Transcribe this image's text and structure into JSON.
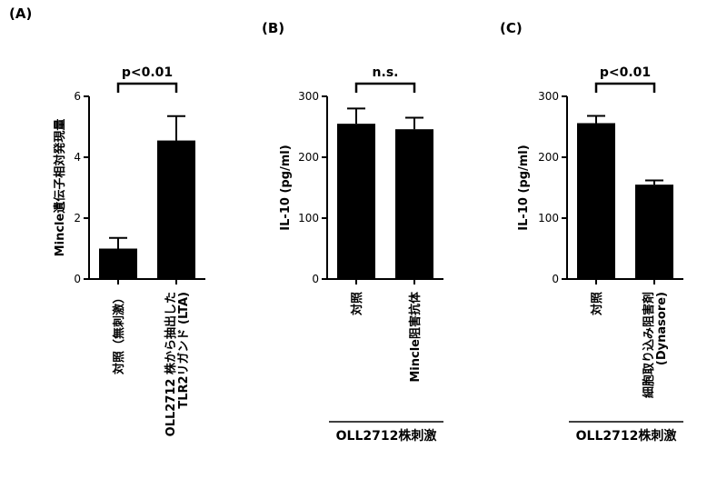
{
  "colors": {
    "bar": "#000000",
    "axis": "#000000",
    "background": "#ffffff"
  },
  "chart_data": [
    {
      "panel_label": "(A)",
      "type": "bar",
      "ylabel": "Mincle遺伝子相対発現量",
      "ylim": [
        0,
        6
      ],
      "yticks": [
        0,
        2,
        4,
        6
      ],
      "categories": [
        {
          "lines": [
            "対照（無刺激）"
          ]
        },
        {
          "lines": [
            "OLL2712 株から抽出した",
            "TLR2リガンド (LTA)"
          ]
        }
      ],
      "values": [
        1.0,
        4.55
      ],
      "errors": [
        0.35,
        0.8
      ],
      "significance": {
        "text": "p<0.01",
        "pair": [
          0,
          1
        ]
      },
      "group_label": ""
    },
    {
      "panel_label": "(B)",
      "type": "bar",
      "ylabel": "IL-10 (pg/ml)",
      "ylim": [
        0,
        300
      ],
      "yticks": [
        0,
        100,
        200,
        300
      ],
      "categories": [
        {
          "lines": [
            "対照"
          ]
        },
        {
          "lines": [
            "Mincle阻害抗体"
          ]
        }
      ],
      "values": [
        255,
        246
      ],
      "errors": [
        25,
        19
      ],
      "significance": {
        "text": "n.s.",
        "pair": [
          0,
          1
        ]
      },
      "group_label": "OLL2712株刺激"
    },
    {
      "panel_label": "(C)",
      "type": "bar",
      "ylabel": "IL-10 (pg/ml)",
      "ylim": [
        0,
        300
      ],
      "yticks": [
        0,
        100,
        200,
        300
      ],
      "categories": [
        {
          "lines": [
            "対照"
          ]
        },
        {
          "lines": [
            "細胞取り込み阻害剤",
            "(Dynasore)"
          ]
        }
      ],
      "values": [
        256,
        155
      ],
      "errors": [
        12,
        7
      ],
      "significance": {
        "text": "p<0.01",
        "pair": [
          0,
          1
        ]
      },
      "group_label": "OLL2712株刺激"
    }
  ]
}
